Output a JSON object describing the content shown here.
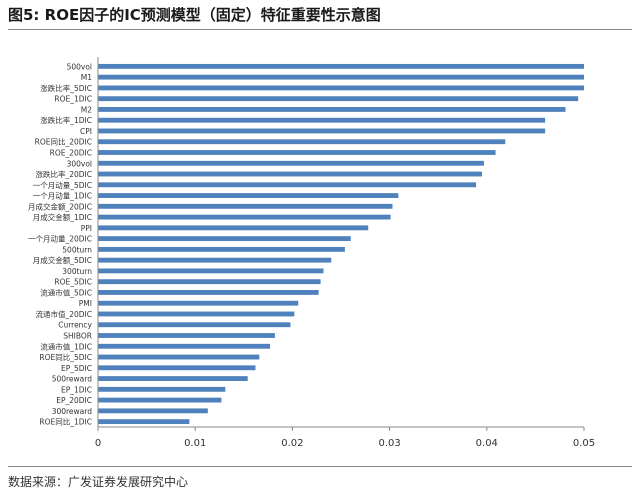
{
  "header": {
    "title": "图5:  ROE因子的IC预测模型（固定）特征重要性示意图"
  },
  "footer": {
    "source": "数据来源：广发证券发展研究中心"
  },
  "chart_data": {
    "type": "bar",
    "orientation": "horizontal",
    "title": "",
    "xlabel": "",
    "ylabel": "",
    "xlim": [
      0,
      0.05
    ],
    "xticks": [
      "0",
      "0.01",
      "0.02",
      "0.03",
      "0.04",
      "0.05"
    ],
    "grid": false,
    "legend": "none",
    "bar_color": "#4F81BD",
    "categories": [
      "500vol",
      "M1",
      "涨跌比率_5DIC",
      "ROE_1DIC",
      "M2",
      "涨跌比率_1DIC",
      "CPI",
      "ROE同比_20DIC",
      "ROE_20DIC",
      "300vol",
      "涨跌比率_20DIC",
      "一个月动量_5DIC",
      "一个月动量_1DIC",
      "月成交金额_20DIC",
      "月成交金额_1DIC",
      "PPI",
      "一个月动量_20DIC",
      "500turn",
      "月成交金额_5DIC",
      "300turn",
      "ROE_5DIC",
      "流通市值_5DIC",
      "PMI",
      "流通市值_20DIC",
      "Currency",
      "SHIBOR",
      "流通市值_1DIC",
      "ROE同比_5DIC",
      "EP_5DIC",
      "500reward",
      "EP_1DIC",
      "EP_20DIC",
      "300reward",
      "ROE同比_1DIC"
    ],
    "values": [
      0.05,
      0.05,
      0.05,
      0.0494,
      0.0481,
      0.046,
      0.046,
      0.0419,
      0.0409,
      0.0397,
      0.0395,
      0.0389,
      0.0309,
      0.0303,
      0.0301,
      0.0278,
      0.026,
      0.0254,
      0.024,
      0.0232,
      0.0229,
      0.0227,
      0.0206,
      0.0202,
      0.0198,
      0.0182,
      0.0177,
      0.0166,
      0.0162,
      0.0154,
      0.0131,
      0.0127,
      0.0113,
      0.0094
    ]
  }
}
